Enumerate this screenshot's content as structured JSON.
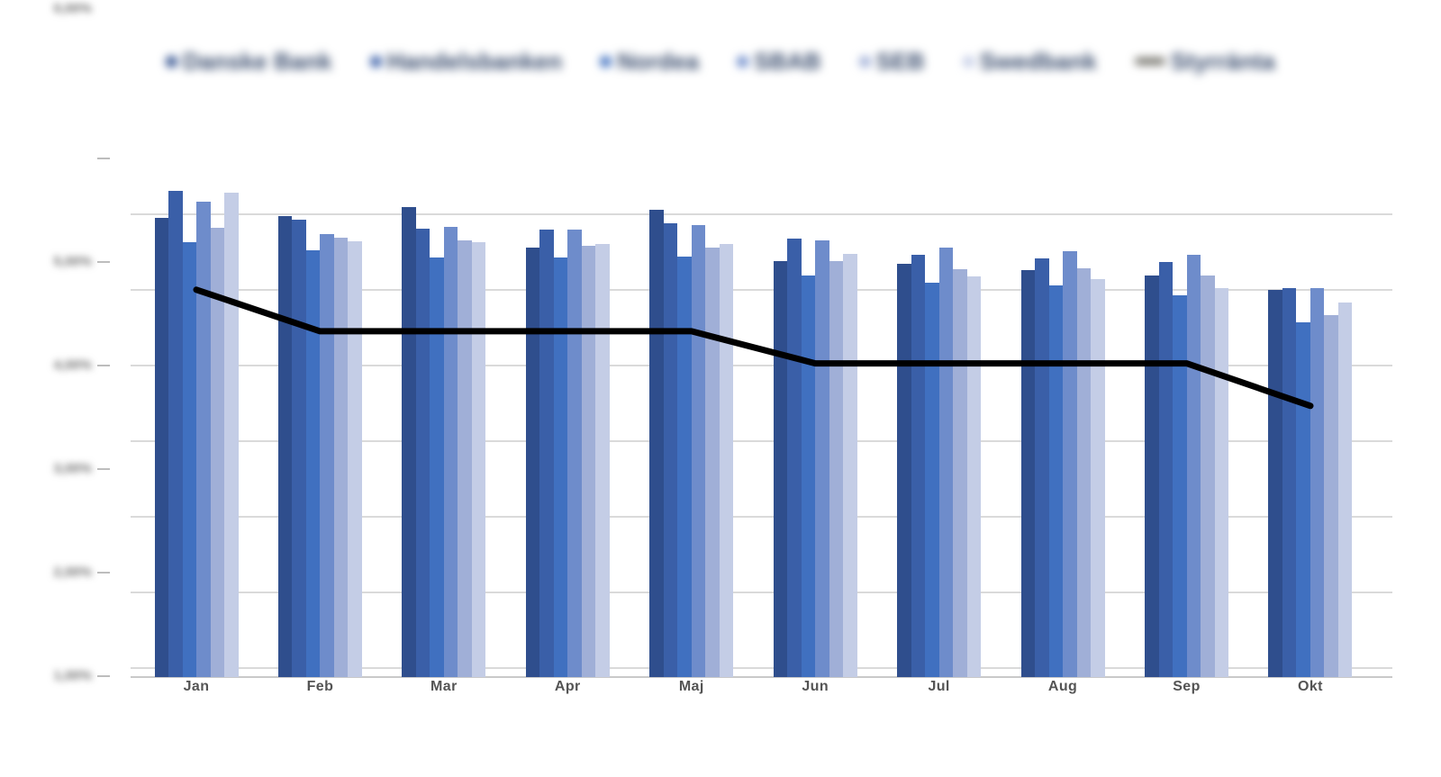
{
  "legend": {
    "items": [
      {
        "label": "Danske Bank",
        "marker": "dot",
        "color": "#2F4E8D"
      },
      {
        "label": "Handelsbanken",
        "marker": "dot",
        "color": "#3A5FA8"
      },
      {
        "label": "Nordea",
        "marker": "dot",
        "color": "#4070C0"
      },
      {
        "label": "SBAB",
        "marker": "dot",
        "color": "#6E8CCB"
      },
      {
        "label": "SEB",
        "marker": "dot",
        "color": "#A0AFD7"
      },
      {
        "label": "Swedbank",
        "marker": "dot",
        "color": "#C4CDE6"
      },
      {
        "label": "Styrränta",
        "marker": "dash",
        "color": "#6E6D65"
      }
    ],
    "blurred": true
  },
  "y_axis": {
    "tick_labels": [
      "5,00%",
      "4,00%",
      "3,00%",
      "2,00%",
      "1,00%",
      "0,00%"
    ],
    "blurred": true
  },
  "x_axis": {
    "categories": [
      "Jan",
      "Feb",
      "Mar",
      "Apr",
      "Maj",
      "Jun",
      "Jul",
      "Aug",
      "Sep",
      "Okt"
    ]
  },
  "colors": {
    "background": "#ffffff",
    "gridline": "#dadada",
    "policy_line": "#000000"
  },
  "chart_data": {
    "type": "bar",
    "title": "",
    "xlabel": "",
    "ylabel": "",
    "ylim": [
      0,
      5
    ],
    "grid": true,
    "legend_position": "top",
    "categories": [
      "Jan",
      "Feb",
      "Mar",
      "Apr",
      "Maj",
      "Jun",
      "Jul",
      "Aug",
      "Sep",
      "Okt"
    ],
    "series": [
      {
        "name": "Danske Bank",
        "type": "bar",
        "color": "#2F4E8D",
        "values": [
          4.42,
          4.44,
          4.53,
          4.14,
          4.5,
          4.01,
          3.98,
          3.92,
          3.87,
          3.73
        ]
      },
      {
        "name": "Handelsbanken",
        "type": "bar",
        "color": "#3A5FA8",
        "values": [
          4.68,
          4.41,
          4.32,
          4.31,
          4.37,
          4.22,
          4.07,
          4.03,
          4.0,
          3.75
        ]
      },
      {
        "name": "Nordea",
        "type": "bar",
        "color": "#4070C0",
        "values": [
          4.19,
          4.11,
          4.04,
          4.04,
          4.05,
          3.87,
          3.8,
          3.77,
          3.68,
          3.42
        ]
      },
      {
        "name": "SBAB",
        "type": "bar",
        "color": "#6E8CCB",
        "values": [
          4.58,
          4.27,
          4.34,
          4.31,
          4.35,
          4.21,
          4.14,
          4.1,
          4.07,
          3.75
        ]
      },
      {
        "name": "SEB",
        "type": "bar",
        "color": "#A0AFD7",
        "values": [
          4.33,
          4.23,
          4.21,
          4.15,
          4.14,
          4.01,
          3.93,
          3.94,
          3.87,
          3.49
        ]
      },
      {
        "name": "Swedbank",
        "type": "bar",
        "color": "#C4CDE6",
        "values": [
          4.67,
          4.2,
          4.19,
          4.17,
          4.17,
          4.08,
          3.86,
          3.83,
          3.75,
          3.61
        ]
      },
      {
        "name": "Styrränta",
        "type": "line",
        "color": "#000000",
        "values": [
          3.73,
          3.33,
          3.33,
          3.33,
          3.33,
          3.02,
          3.02,
          3.02,
          3.02,
          2.61
        ]
      }
    ]
  }
}
